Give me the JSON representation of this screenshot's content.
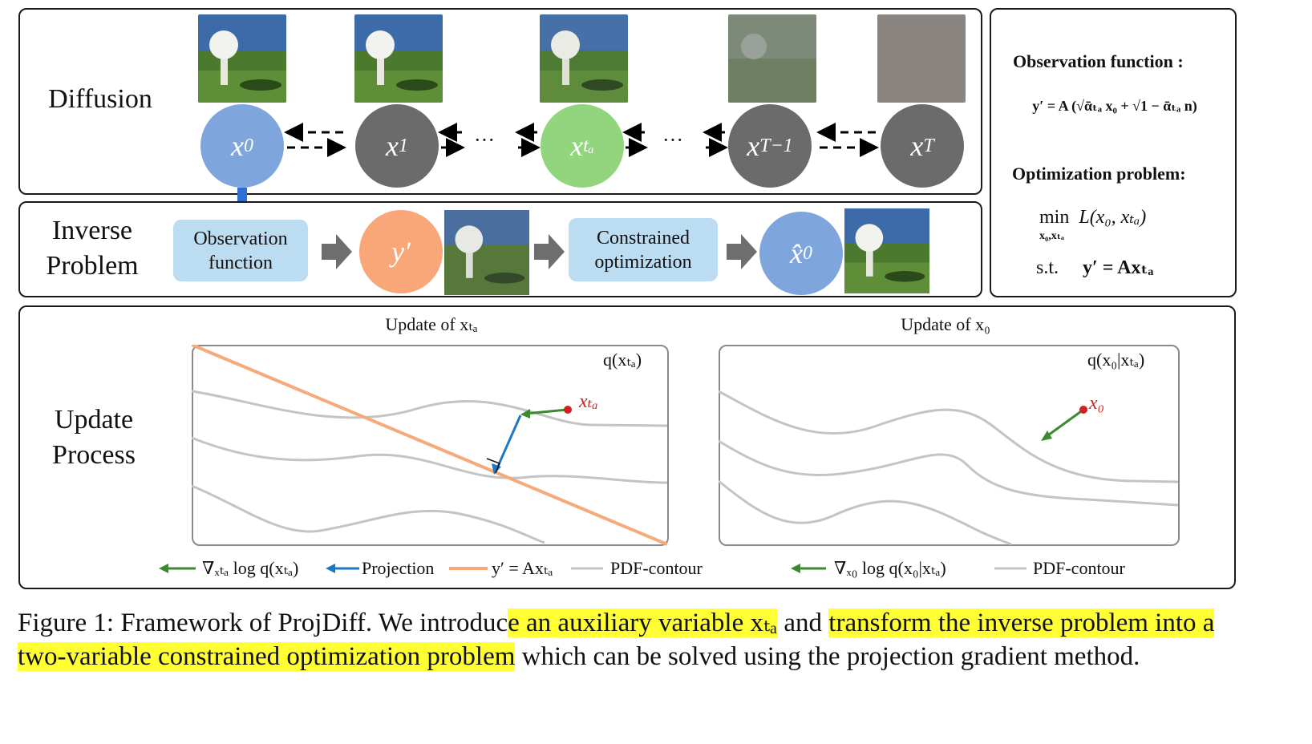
{
  "diffusion": {
    "label": "Diffusion",
    "nodes": [
      {
        "sym": "x",
        "sub": "0",
        "color": "#7ea6dc"
      },
      {
        "sym": "x",
        "sub": "1",
        "color": "#6b6b6b"
      },
      {
        "sym": "x",
        "sub": "tₐ",
        "color": "#93d57f"
      },
      {
        "sym": "x",
        "sub": "T−1",
        "color": "#6b6b6b"
      },
      {
        "sym": "x",
        "sub": "T",
        "color": "#6b6b6b"
      }
    ],
    "ellipsis": "···"
  },
  "inverse": {
    "label_line1": "Inverse",
    "label_line2": "Problem",
    "box1_line1": "Observation",
    "box1_line2": "function",
    "y_node": "y′",
    "box2_line1": "Constrained",
    "box2_line2": "optimization",
    "xhat_node": "x̂",
    "xhat_sub": "0"
  },
  "right_panel": {
    "obs_title": "Observation function :",
    "obs_eq": "y′ = A (√ᾱₜₐ x₀ + √1 − ᾱₜₐ n)",
    "opt_title": "Optimization problem:",
    "opt_min": "min",
    "opt_min_sub": "x₀,xₜₐ",
    "opt_obj": "L(x₀, xₜₐ)",
    "opt_st": "s.t.",
    "opt_constraint": "y′ = Axₜₐ"
  },
  "update": {
    "label_line1": "Update",
    "label_line2": "Process",
    "left_title": "Update of xₜₐ",
    "right_title": "Update of x₀",
    "left_plot_label": "q(xₜₐ)",
    "right_plot_label": "q(x₀|xₜₐ)",
    "left_point": "xₜₐ",
    "right_point": "x₀",
    "legend_left": {
      "grad": "∇ₓₜₐ log q(xₜₐ)",
      "proj": "Projection",
      "line": "y′ = Axₜₐ",
      "contour": "PDF-contour"
    },
    "legend_right": {
      "grad": "∇ₓ₀ log q(x₀|xₜₐ)",
      "contour": "PDF-contour"
    }
  },
  "caption": {
    "prefix": "Figure 1: Framework of ProjDiff. We introduc",
    "hl1": "e an auxiliary variable xₜₐ",
    "mid": " and ",
    "hl2": "transform the inverse problem into a two-variable constrained optimization problem",
    "suffix": " which can be solved using the projection gradient method."
  },
  "colors": {
    "x0_blue": "#7ea6dc",
    "gray_node": "#6b6b6b",
    "green_node": "#93d57f",
    "orange_node": "#f9a679",
    "box_blue": "#bcdcf2",
    "arrow_blue": "#2f6fd1",
    "orange_line": "#f7a97a",
    "green_arrow": "#3a8a2e",
    "proj_blue": "#1f78c1",
    "contour_gray": "#c4c4c4",
    "highlight": "#ffff33"
  }
}
